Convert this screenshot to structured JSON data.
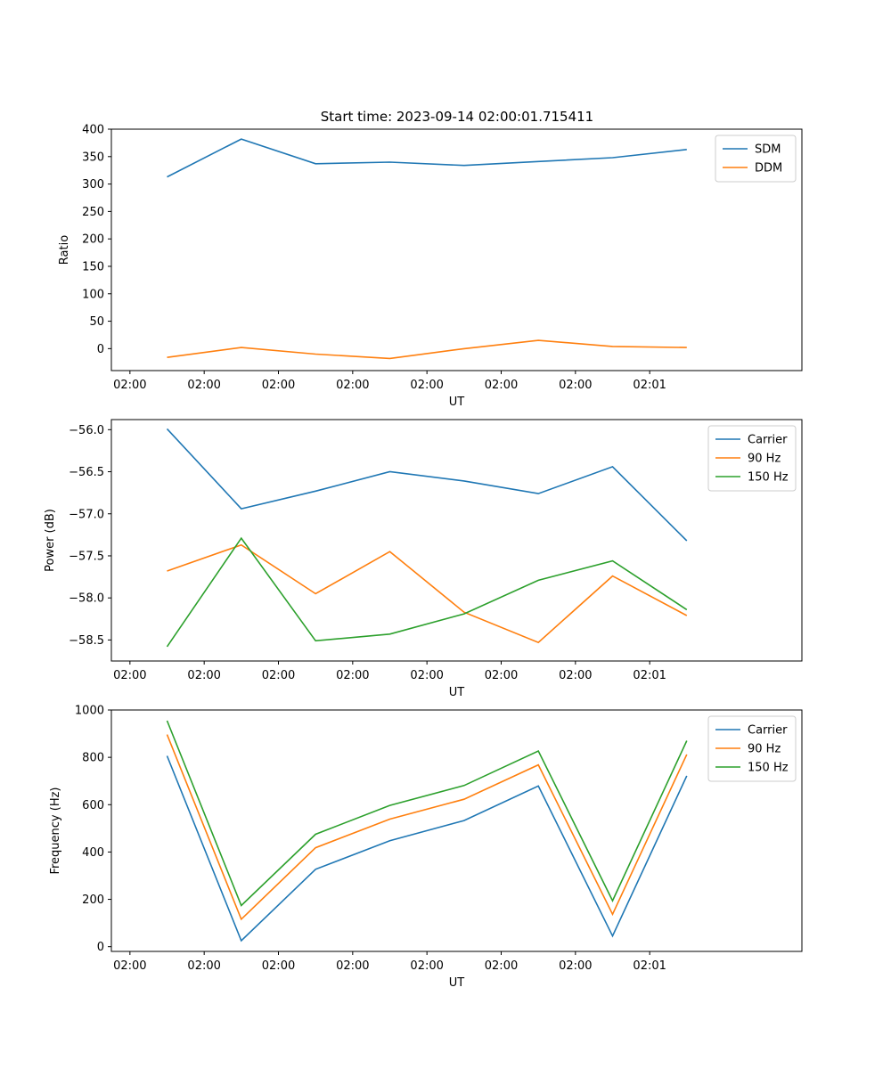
{
  "figure": {
    "title": "Start time: 2023-09-14 02:00:01.715411"
  },
  "chart_data": [
    {
      "type": "line",
      "xlabel": "UT",
      "ylabel": "Ratio",
      "x_tick_labels": [
        "02:00",
        "02:00",
        "02:00",
        "02:00",
        "02:00",
        "02:00",
        "02:00",
        "02:01"
      ],
      "x_index_range": [
        -0.75,
        8.55
      ],
      "ylim": [
        -40,
        400
      ],
      "y_ticks": [
        0,
        50,
        100,
        150,
        200,
        250,
        300,
        350,
        400
      ],
      "y_tick_labels": [
        "0",
        "50",
        "100",
        "150",
        "200",
        "250",
        "300",
        "350",
        "400"
      ],
      "legend_position": "top-right",
      "series": [
        {
          "name": "SDM",
          "color": "#1f77b4",
          "x": [
            0,
            1,
            2,
            3,
            4,
            5,
            6,
            7
          ],
          "values": [
            313,
            382,
            337,
            340,
            334,
            341,
            348,
            363
          ]
        },
        {
          "name": "DDM",
          "color": "#ff7f0e",
          "x": [
            0,
            1,
            2,
            3,
            4,
            5,
            6,
            7
          ],
          "values": [
            -16,
            2,
            -10,
            -18,
            0,
            15,
            4,
            2
          ]
        }
      ]
    },
    {
      "type": "line",
      "xlabel": "UT",
      "ylabel": "Power (dB)",
      "x_tick_labels": [
        "02:00",
        "02:00",
        "02:00",
        "02:00",
        "02:00",
        "02:00",
        "02:00",
        "02:01"
      ],
      "x_index_range": [
        -0.75,
        8.55
      ],
      "ylim": [
        -58.75,
        -55.88
      ],
      "y_ticks": [
        -56.0,
        -56.5,
        -57.0,
        -57.5,
        -58.0,
        -58.5
      ],
      "y_tick_labels": [
        "−56.0",
        "−56.5",
        "−57.0",
        "−57.5",
        "−58.0",
        "−58.5"
      ],
      "legend_position": "top-right",
      "series": [
        {
          "name": "Carrier",
          "color": "#1f77b4",
          "x": [
            0,
            1,
            2,
            3,
            4,
            5,
            6,
            7
          ],
          "values": [
            -55.99,
            -56.94,
            -56.73,
            -56.5,
            -56.61,
            -56.76,
            -56.44,
            -57.32
          ]
        },
        {
          "name": "90 Hz",
          "color": "#ff7f0e",
          "x": [
            0,
            1,
            2,
            3,
            4,
            5,
            6,
            7
          ],
          "values": [
            -57.68,
            -57.37,
            -57.95,
            -57.45,
            -58.17,
            -58.53,
            -57.74,
            -58.21
          ]
        },
        {
          "name": "150 Hz",
          "color": "#2ca02c",
          "x": [
            0,
            1,
            2,
            3,
            4,
            5,
            6,
            7
          ],
          "values": [
            -58.58,
            -57.29,
            -58.51,
            -58.43,
            -58.19,
            -57.79,
            -57.56,
            -58.14
          ]
        }
      ]
    },
    {
      "type": "line",
      "xlabel": "UT",
      "ylabel": "Frequency (Hz)",
      "x_tick_labels": [
        "02:00",
        "02:00",
        "02:00",
        "02:00",
        "02:00",
        "02:00",
        "02:00",
        "02:01"
      ],
      "x_index_range": [
        -0.75,
        8.55
      ],
      "ylim": [
        -20,
        1000
      ],
      "y_ticks": [
        0,
        200,
        400,
        600,
        800,
        1000
      ],
      "y_tick_labels": [
        "0",
        "200",
        "400",
        "600",
        "800",
        "1000"
      ],
      "legend_position": "top-right",
      "series": [
        {
          "name": "Carrier",
          "color": "#1f77b4",
          "x": [
            0,
            1,
            2,
            3,
            4,
            5,
            6,
            7
          ],
          "values": [
            806,
            25,
            327,
            448,
            533,
            679,
            45,
            722
          ]
        },
        {
          "name": "90 Hz",
          "color": "#ff7f0e",
          "x": [
            0,
            1,
            2,
            3,
            4,
            5,
            6,
            7
          ],
          "values": [
            896,
            116,
            418,
            539,
            623,
            768,
            137,
            812
          ]
        },
        {
          "name": "150 Hz",
          "color": "#2ca02c",
          "x": [
            0,
            1,
            2,
            3,
            4,
            5,
            6,
            7
          ],
          "values": [
            955,
            174,
            475,
            597,
            681,
            827,
            194,
            870
          ]
        }
      ]
    }
  ]
}
